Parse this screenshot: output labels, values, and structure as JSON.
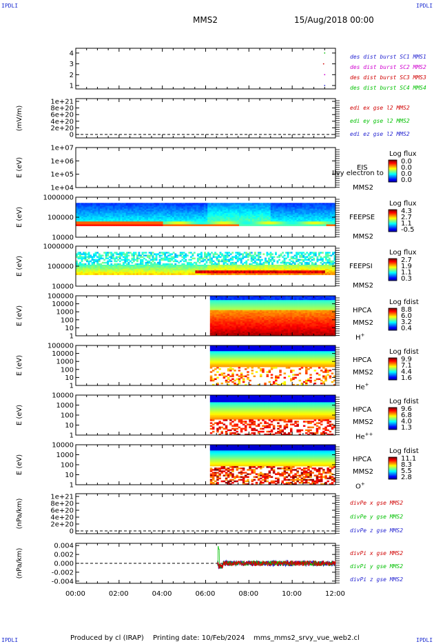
{
  "header": {
    "corner_label": "IPDLI",
    "title": "MMS2",
    "date": "15/Aug/2018 00:00"
  },
  "footer": {
    "producer": "Produced by cl (IRAP)",
    "printing": "Printing date: 10/Feb/2024",
    "file": "mms_mms2_srvy_vue_web2.cl"
  },
  "chart_data": [
    {
      "type": "scatter",
      "panel": "burst",
      "yticks": [
        "1",
        "2",
        "3",
        "4"
      ],
      "ylim": [
        0.6,
        4.4
      ],
      "legend": [
        "des dist burst SC1 MMS1",
        "des dist burst SC2 MMS2",
        "des dist burst SC3 MMS3",
        "des dist burst SC4 MMS4"
      ],
      "legend_colors": [
        "#1f1fd0",
        "#d000d0",
        "#d00000",
        "#00c000"
      ],
      "points": [
        {
          "t": 11.5,
          "y": 1
        },
        {
          "t": 11.5,
          "y": 2
        },
        {
          "t": 11.45,
          "y": 3
        },
        {
          "t": 11.5,
          "y": 4
        }
      ]
    },
    {
      "type": "line",
      "panel": "edi",
      "ylabel": "(mV/m)",
      "yticks": [
        "0",
        "2e+20",
        "4e+20",
        "6e+20",
        "8e+20",
        "1e+21"
      ],
      "legend": [
        "edi ex gse l2 MMS2",
        "edi ey gse l2 MMS2",
        "edi ez gse l2 MMS2"
      ],
      "legend_colors": [
        "#d00000",
        "#00c000",
        "#1f1fd0"
      ]
    },
    {
      "type": "heatmap",
      "panel": "eis",
      "ylabel": "E (eV)",
      "yticks": [
        "1e+04",
        "1e+05",
        "1e+06",
        "1e+07"
      ],
      "instrument": "EIS",
      "spacecraft": "MMS2",
      "overlay_text": "Ilvy electron to",
      "colorbar_title": "Log flux",
      "colorbar_ticks": [
        "0.0",
        "0.0",
        "0.0",
        "0.0"
      ]
    },
    {
      "type": "heatmap",
      "panel": "feepse",
      "ylabel": "E (eV)",
      "yticks": [
        "10000",
        "100000",
        "1000000"
      ],
      "instrument": "FEEPSE",
      "spacecraft": "MMS2",
      "colorbar_title": "Log flux",
      "colorbar_ticks": [
        "4.3",
        "2.7",
        "1.1",
        "-0.5"
      ]
    },
    {
      "type": "heatmap",
      "panel": "feepsi",
      "ylabel": "E (eV)",
      "yticks": [
        "10000",
        "100000",
        "1000000"
      ],
      "instrument": "FEEPSI",
      "spacecraft": "MMS2",
      "colorbar_title": "Log flux",
      "colorbar_ticks": [
        "2.7",
        "1.9",
        "1.1",
        "0.3"
      ]
    },
    {
      "type": "heatmap",
      "panel": "hpca-h",
      "ylabel": "E (eV)",
      "yticks": [
        "1",
        "10",
        "100",
        "1000",
        "10000",
        "100000"
      ],
      "instrument": "HPCA",
      "spacecraft": "MMS2",
      "species": "H",
      "charge": "+",
      "colorbar_title": "Log fdist",
      "colorbar_ticks": [
        "8.8",
        "6.0",
        "3.2",
        "0.4"
      ]
    },
    {
      "type": "heatmap",
      "panel": "hpca-he",
      "ylabel": "E (eV)",
      "yticks": [
        "1",
        "10",
        "100",
        "1000",
        "10000",
        "100000"
      ],
      "instrument": "HPCA",
      "spacecraft": "MMS2",
      "species": "He",
      "charge": "+",
      "colorbar_title": "Log fdist",
      "colorbar_ticks": [
        "9.9",
        "7.1",
        "4.4",
        "1.6"
      ]
    },
    {
      "type": "heatmap",
      "panel": "hpca-he2",
      "ylabel": "E (eV)",
      "yticks": [
        "1",
        "10",
        "100",
        "1000",
        "10000"
      ],
      "instrument": "HPCA",
      "spacecraft": "MMS2",
      "species": "He",
      "charge": "++",
      "colorbar_title": "Log fdist",
      "colorbar_ticks": [
        "9.6",
        "6.8",
        "4.0",
        "1.3"
      ]
    },
    {
      "type": "heatmap",
      "panel": "hpca-o",
      "ylabel": "E (eV)",
      "yticks": [
        "1",
        "10",
        "100",
        "1000",
        "10000"
      ],
      "instrument": "HPCA",
      "spacecraft": "MMS2",
      "species": "O",
      "charge": "+",
      "colorbar_title": "Log fdist",
      "colorbar_ticks": [
        "11.1",
        "8.3",
        "5.5",
        "2.8"
      ]
    },
    {
      "type": "line",
      "panel": "divpe",
      "ylabel": "(nPa/km)",
      "yticks": [
        "0",
        "2e+20",
        "4e+20",
        "6e+20",
        "8e+20",
        "1e+21"
      ],
      "legend": [
        "divPe x gse MMS2",
        "divPe y gse MMS2",
        "divPe z gse MMS2"
      ],
      "legend_colors": [
        "#d00000",
        "#00c000",
        "#1f1fd0"
      ]
    },
    {
      "type": "line",
      "panel": "divpi",
      "ylabel": "(nPa/km)",
      "yticks": [
        "-0.004",
        "-0.002",
        "0.000",
        "0.002",
        "0.004"
      ],
      "ylim": [
        -0.0045,
        0.0045
      ],
      "legend": [
        "divPi x gse MMS2",
        "divPi y gse MMS2",
        "divPi z gse MMS2"
      ],
      "legend_colors": [
        "#d00000",
        "#00c000",
        "#1f1fd0"
      ],
      "data_start_hour": 6.55,
      "spike": {
        "t": 6.6,
        "y": 0.0038
      },
      "baseline_mean": 0.0
    }
  ],
  "xaxis": {
    "ticks": [
      "00:00",
      "02:00",
      "04:00",
      "06:00",
      "08:00",
      "10:00",
      "12:00"
    ],
    "range_hours": [
      0,
      12
    ]
  }
}
